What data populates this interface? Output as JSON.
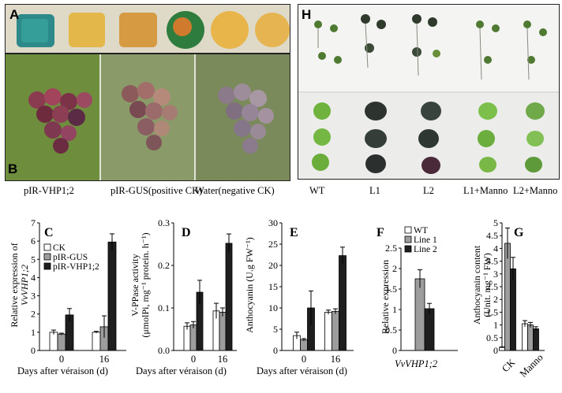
{
  "panel_letters": {
    "a": "A",
    "b": "B",
    "c": "C",
    "d": "D",
    "e": "E",
    "f": "F",
    "g": "G",
    "h": "H"
  },
  "panel_b_captions": [
    "pIR-VHP1;2",
    "pIR-GUS(positive CK)",
    "Water(negative CK)"
  ],
  "panel_h_captions": [
    "WT",
    "L1",
    "L2",
    "L1+Manno",
    "L2+Manno"
  ],
  "colors": {
    "black": "#1e1e1e",
    "gray": "#9d9d9d",
    "white": "#ffffff",
    "grape_dark": "#5b3146",
    "leaf": "#6a8f3a"
  },
  "chart_data": [
    {
      "id": "C",
      "type": "bar",
      "categories": [
        "0",
        "16"
      ],
      "xlabel": "Days after véraison (d)",
      "ylabel": "Relative expression of VvVHP1;2",
      "ylim": [
        0,
        7
      ],
      "yticks": [
        "0",
        "1",
        "2",
        "3",
        "4",
        "5",
        "6",
        "7"
      ],
      "legend": [
        "CK",
        "pIR-GUS",
        "pIR-VHP1;2"
      ],
      "series": [
        {
          "name": "CK",
          "values": [
            1.0,
            1.0
          ],
          "errors": [
            0.12,
            0.05
          ]
        },
        {
          "name": "pIR-GUS",
          "values": [
            0.9,
            1.3
          ],
          "errors": [
            0.05,
            0.6
          ]
        },
        {
          "name": "pIR-VHP1;2",
          "values": [
            1.95,
            5.95
          ],
          "errors": [
            0.35,
            0.45
          ]
        }
      ]
    },
    {
      "id": "D",
      "type": "bar",
      "categories": [
        "0",
        "16"
      ],
      "xlabel": "Days after véraison (d)",
      "ylabel": "V-PPase activity (μmolPi, mg⁻¹ protein. h⁻¹)",
      "ylim": [
        0,
        0.3
      ],
      "yticks": [
        "0.0",
        "0.1",
        "0.2",
        "0.3"
      ],
      "series": [
        {
          "values": [
            0.057,
            0.093
          ],
          "errors": [
            0.008,
            0.018
          ]
        },
        {
          "values": [
            0.06,
            0.09
          ],
          "errors": [
            0.008,
            0.01
          ]
        },
        {
          "values": [
            0.137,
            0.252
          ],
          "errors": [
            0.028,
            0.022
          ]
        }
      ]
    },
    {
      "id": "E",
      "type": "bar",
      "categories": [
        "0",
        "16"
      ],
      "xlabel": "Days after véraison (d)",
      "ylabel": "Anthocyanin (U.g FW⁻¹)",
      "ylim": [
        0,
        30
      ],
      "yticks": [
        "0",
        "5",
        "10",
        "15",
        "20",
        "25",
        "30"
      ],
      "series": [
        {
          "values": [
            3.5,
            9.0
          ],
          "errors": [
            0.8,
            0.5
          ]
        },
        {
          "values": [
            2.5,
            9.2
          ],
          "errors": [
            0.3,
            0.6
          ]
        },
        {
          "values": [
            10.0,
            22.3
          ],
          "errors": [
            4.0,
            2.0
          ]
        }
      ]
    },
    {
      "id": "F",
      "type": "bar",
      "categories": [
        "VvVHP1;2"
      ],
      "xlabel": "VvVHP1;2",
      "ylabel": "Relative expression",
      "ylim": [
        0,
        2.5
      ],
      "yticks": [
        "0",
        "0.5",
        "1",
        "1.5",
        "2",
        "2.5"
      ],
      "legend": [
        "WT",
        "Line 1",
        "Line 2"
      ],
      "series": [
        {
          "name": "WT",
          "values": [
            0
          ],
          "errors": [
            0
          ]
        },
        {
          "name": "Line 1",
          "values": [
            1.75
          ],
          "errors": [
            0.22
          ]
        },
        {
          "name": "Line 2",
          "values": [
            1.02
          ],
          "errors": [
            0.13
          ]
        }
      ]
    },
    {
      "id": "G",
      "type": "bar",
      "categories": [
        "CK",
        "Manno"
      ],
      "xlabel": "",
      "ylabel": "Anthocyanin content (Unit. mg⁻¹ FW)",
      "ylim": [
        0,
        5
      ],
      "yticks": [
        "0",
        "0.5",
        "1",
        "1.5",
        "2",
        "2.5",
        "3",
        "3.5",
        "4",
        "4.5",
        "5"
      ],
      "series": [
        {
          "values": [
            0.12,
            1.05
          ],
          "errors": [
            0.02,
            0.12
          ]
        },
        {
          "values": [
            4.2,
            1.0
          ],
          "errors": [
            0.6,
            0.1
          ]
        },
        {
          "values": [
            3.2,
            0.85
          ],
          "errors": [
            0.45,
            0.08
          ]
        }
      ]
    }
  ]
}
